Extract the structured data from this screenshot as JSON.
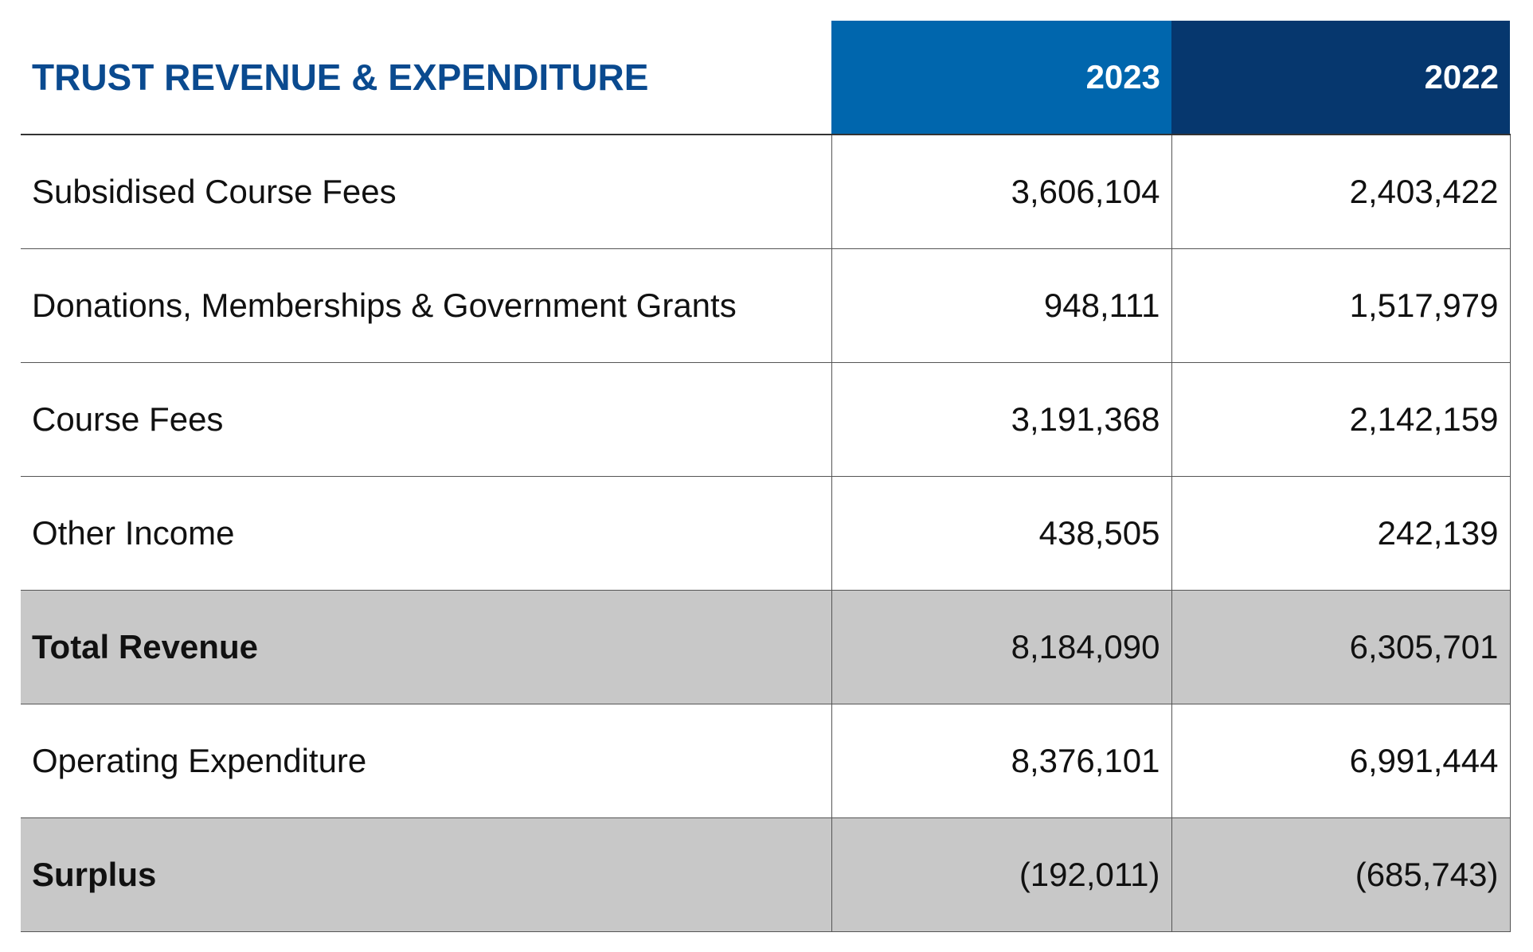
{
  "header": {
    "title": "TRUST REVENUE & EXPENDITURE",
    "columns": [
      "2023",
      "2022"
    ]
  },
  "table": {
    "rows": [
      [
        "Subsidised Course Fees",
        "3,606,104",
        "2,403,422"
      ],
      [
        "Donations, Memberships & Government Grants",
        "948,111",
        "1,517,979"
      ],
      [
        "Course Fees",
        "3,191,368",
        "2,142,159"
      ],
      [
        "Other Income",
        "438,505",
        "242,139"
      ],
      [
        "Total Revenue",
        "8,184,090",
        "6,305,701"
      ],
      [
        "Operating Expenditure",
        "8,376,101",
        "6,991,444"
      ],
      [
        "Surplus",
        "(192,011)",
        "(685,743)"
      ]
    ],
    "highlighted_rows": [
      4,
      6
    ]
  }
}
